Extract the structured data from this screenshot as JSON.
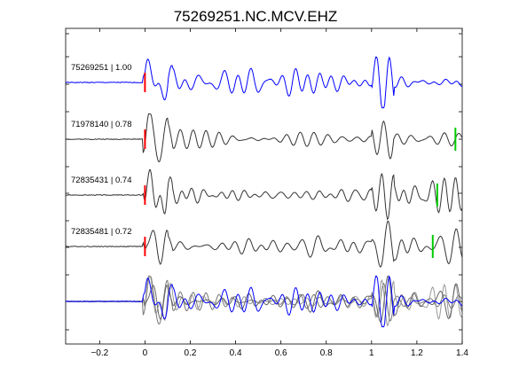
{
  "chart_data": {
    "type": "line",
    "title": "75269251.NC.MCV.EHZ",
    "xlabel": "",
    "ylabel": "",
    "xlim": [
      -0.35,
      1.4
    ],
    "x_ticks": [
      -0.2,
      0,
      0.2,
      0.4,
      0.6,
      0.8,
      1,
      1.2,
      1.4
    ],
    "x_tick_labels": [
      "−0.2",
      "0",
      "0.2",
      "0.4",
      "0.6",
      "0.8",
      "1",
      "1.2",
      "1.4"
    ],
    "grid": false,
    "series": [
      {
        "name": "75269251 | 1.00",
        "color": "#0000ff",
        "seed": 1,
        "a_pick": 0,
        "s_pick": null
      },
      {
        "name": "71978140 | 0.78",
        "color": "#333333",
        "seed": 2,
        "a_pick": 0,
        "s_pick": 1.37
      },
      {
        "name": "72835431 | 0.74",
        "color": "#333333",
        "seed": 3,
        "a_pick": 0,
        "s_pick": 1.29
      },
      {
        "name": "72835481 | 0.72",
        "color": "#333333",
        "seed": 4,
        "a_pick": 0,
        "s_pick": 1.27
      }
    ],
    "stack": {
      "overlay_colors": [
        "#777777",
        "#999999",
        "#666666",
        "#0000ff"
      ]
    },
    "pick_colors": {
      "a": "#ff0000",
      "s": "#00cc00"
    }
  }
}
